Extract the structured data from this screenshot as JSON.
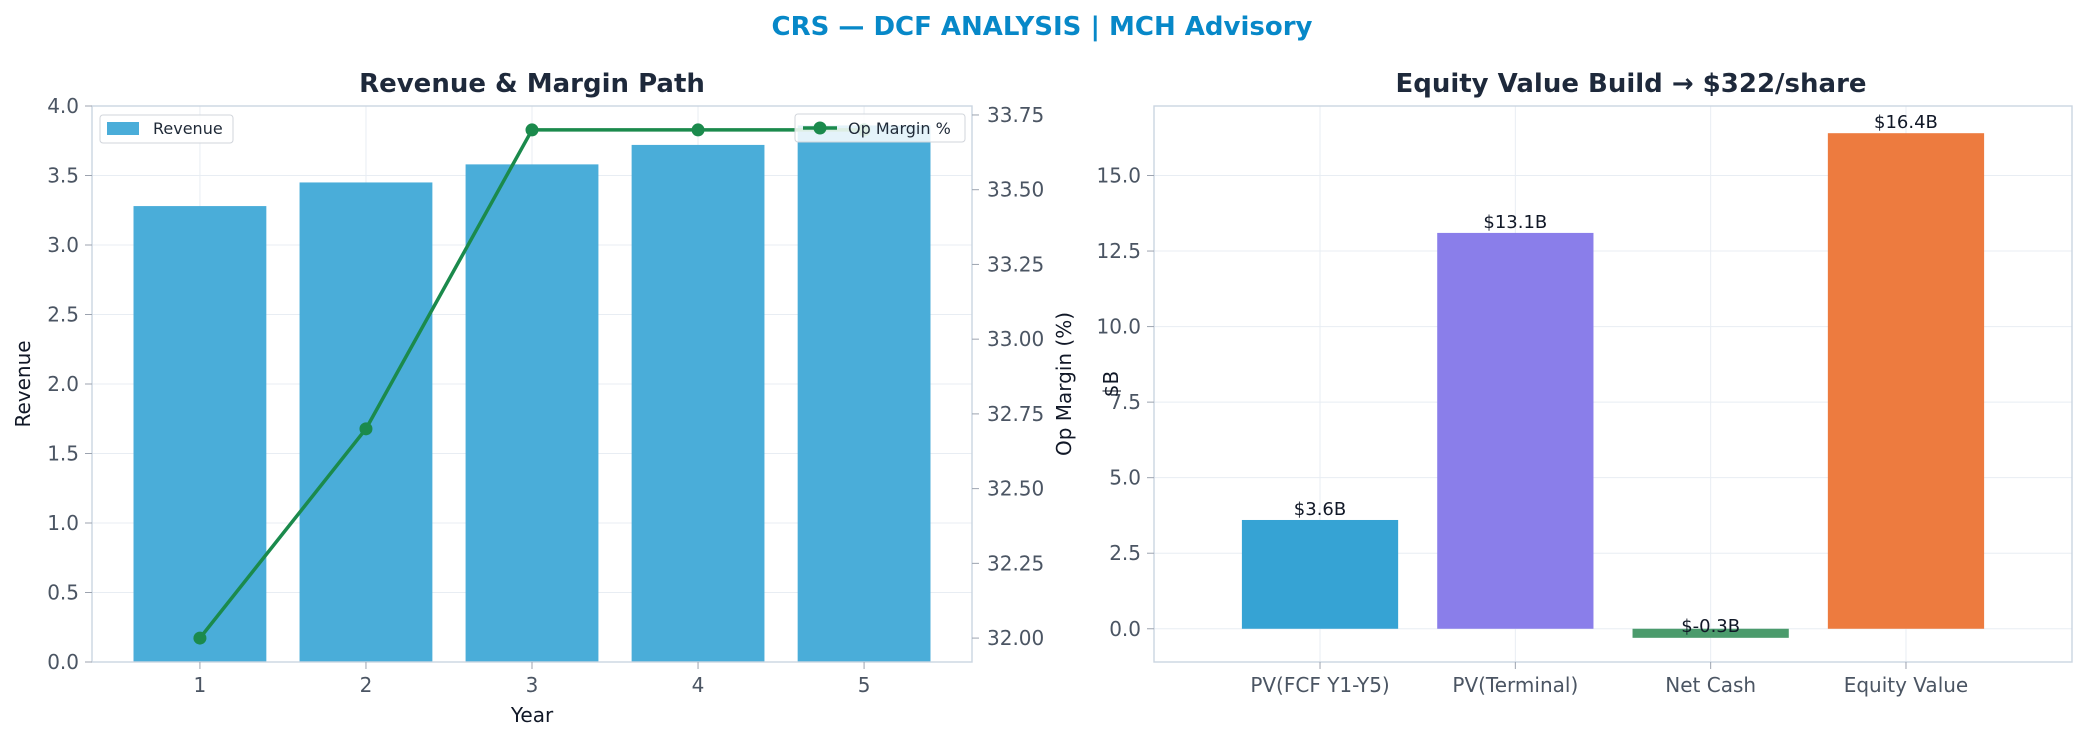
{
  "suptitle": "CRS — DCF ANALYSIS | MCH Advisory",
  "colors": {
    "title_accent": "#0788c8",
    "revenue_bar": "#4aadd9",
    "margin_line": "#1b8a4c",
    "pv_fcf": "#36a3d4",
    "pv_terminal": "#8a7eea",
    "net_cash": "#4b9b6c",
    "equity_value": "#ed7b3f"
  },
  "chart_data": [
    {
      "type": "bar",
      "title": "Revenue & Margin Path",
      "xlabel": "Year",
      "ylabel": "Revenue",
      "y2label": "Op Margin (%)",
      "categories": [
        "1",
        "2",
        "3",
        "4",
        "5"
      ],
      "series": [
        {
          "name": "Revenue",
          "type": "bar",
          "axis": "left",
          "values": [
            3.28,
            3.45,
            3.58,
            3.72,
            3.86
          ]
        },
        {
          "name": "Op Margin %",
          "type": "line",
          "axis": "right",
          "values": [
            32.0,
            32.7,
            33.7,
            33.7,
            33.7
          ]
        }
      ],
      "ylim": [
        0,
        4
      ],
      "y_ticks": [
        "0.0",
        "0.5",
        "1.0",
        "1.5",
        "2.0",
        "2.5",
        "3.0",
        "3.5",
        "4.0"
      ],
      "y2lim": [
        31.92,
        33.78
      ],
      "y2_ticks": [
        "32.00",
        "32.25",
        "32.50",
        "32.75",
        "33.00",
        "33.25",
        "33.50",
        "33.75"
      ],
      "grid": true,
      "legend_left": "top-left",
      "legend_right": "top-right"
    },
    {
      "type": "bar",
      "title": "Equity Value Build → $322/share",
      "xlabel": "",
      "ylabel": "$B",
      "categories": [
        "PV(FCF Y1-Y5)",
        "PV(Terminal)",
        "Net Cash",
        "Equity Value"
      ],
      "values": [
        3.6,
        13.1,
        -0.3,
        16.4
      ],
      "data_labels": [
        "$3.6B",
        "$13.1B",
        "$-0.3B",
        "$16.4B"
      ],
      "ylim": [
        -1.1,
        17.3
      ],
      "y_ticks": [
        "0.0",
        "2.5",
        "5.0",
        "7.5",
        "10.0",
        "12.5",
        "15.0"
      ],
      "grid": true
    }
  ]
}
